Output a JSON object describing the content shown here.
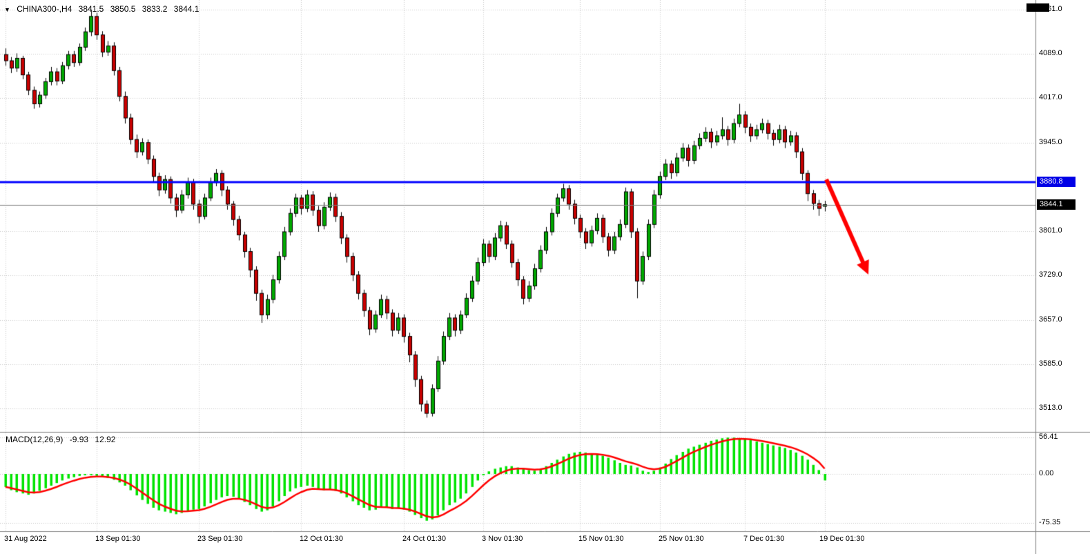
{
  "header": {
    "symbol_period": "CHINA300-,H4",
    "open": "3841.5",
    "high": "3850.5",
    "low": "3833.2",
    "close": "3844.1"
  },
  "macd_header": {
    "title": "MACD(12,26,9)",
    "main": "-9.93",
    "signal": "12.92"
  },
  "levels": {
    "resistance": {
      "text": "3880.8",
      "value": 3880.8,
      "color": "#0000e6"
    },
    "current": {
      "text": "3844.1",
      "value": 3844.1,
      "color": "#000000"
    }
  },
  "colors": {
    "bull": "#00a800",
    "bear": "#c80000",
    "candle_border": "#000000",
    "macd_hist": "#00e400",
    "macd_signal": "#ff0000",
    "level_line": "#0000ff",
    "current_line": "#808080",
    "grid": "#c8c8c8",
    "separator": "#808080",
    "arrow": "#ff0000"
  },
  "chart_data": {
    "type": "candlestick",
    "symbol": "CHINA300-",
    "timeframe": "H4",
    "price_axis_labels": [
      "4161.0",
      "4089.0",
      "4017.0",
      "3945.0",
      "3801.0",
      "3729.0",
      "3657.0",
      "3585.0",
      "3513.0"
    ],
    "time_axis": [
      {
        "label": "31 Aug 2022",
        "i": 0
      },
      {
        "label": "13 Sep 01:30",
        "i": 16
      },
      {
        "label": "23 Sep 01:30",
        "i": 34
      },
      {
        "label": "12 Oct 01:30",
        "i": 52
      },
      {
        "label": "24 Oct 01:30",
        "i": 70
      },
      {
        "label": "3 Nov 01:30",
        "i": 84
      },
      {
        "label": "15 Nov 01:30",
        "i": 101
      },
      {
        "label": "25 Nov 01:30",
        "i": 115
      },
      {
        "label": "7 Dec 01:30",
        "i": 130
      },
      {
        "label": "19 Dec 01:30",
        "i": 144
      }
    ],
    "candles": [
      [
        4088,
        4098,
        4070,
        4078
      ],
      [
        4078,
        4084,
        4058,
        4066
      ],
      [
        4066,
        4090,
        4060,
        4082
      ],
      [
        4082,
        4086,
        4048,
        4055
      ],
      [
        4055,
        4060,
        4022,
        4030
      ],
      [
        4030,
        4036,
        4000,
        4008
      ],
      [
        4008,
        4028,
        4002,
        4022
      ],
      [
        4022,
        4050,
        4016,
        4044
      ],
      [
        4044,
        4068,
        4038,
        4060
      ],
      [
        4060,
        4066,
        4038,
        4045
      ],
      [
        4045,
        4076,
        4040,
        4070
      ],
      [
        4070,
        4094,
        4064,
        4088
      ],
      [
        4088,
        4094,
        4068,
        4075
      ],
      [
        4075,
        4106,
        4070,
        4100
      ],
      [
        4100,
        4132,
        4094,
        4125
      ],
      [
        4125,
        4160,
        4118,
        4150
      ],
      [
        4150,
        4156,
        4112,
        4120
      ],
      [
        4120,
        4126,
        4084,
        4092
      ],
      [
        4092,
        4110,
        4086,
        4102
      ],
      [
        4102,
        4108,
        4054,
        4062
      ],
      [
        4062,
        4068,
        4012,
        4020
      ],
      [
        4020,
        4028,
        3976,
        3985
      ],
      [
        3985,
        3992,
        3942,
        3950
      ],
      [
        3950,
        3958,
        3920,
        3930
      ],
      [
        3930,
        3952,
        3924,
        3945
      ],
      [
        3945,
        3950,
        3910,
        3918
      ],
      [
        3918,
        3924,
        3880,
        3890
      ],
      [
        3890,
        3896,
        3858,
        3868
      ],
      [
        3868,
        3892,
        3862,
        3885
      ],
      [
        3885,
        3890,
        3846,
        3855
      ],
      [
        3855,
        3862,
        3824,
        3835
      ],
      [
        3835,
        3868,
        3830,
        3860
      ],
      [
        3860,
        3888,
        3854,
        3880
      ],
      [
        3880,
        3886,
        3836,
        3845
      ],
      [
        3845,
        3852,
        3814,
        3825
      ],
      [
        3825,
        3862,
        3820,
        3855
      ],
      [
        3855,
        3888,
        3850,
        3880
      ],
      [
        3880,
        3902,
        3874,
        3895
      ],
      [
        3895,
        3900,
        3858,
        3868
      ],
      [
        3868,
        3874,
        3836,
        3845
      ],
      [
        3845,
        3850,
        3810,
        3820
      ],
      [
        3820,
        3826,
        3786,
        3795
      ],
      [
        3795,
        3800,
        3758,
        3768
      ],
      [
        3768,
        3774,
        3726,
        3738
      ],
      [
        3738,
        3744,
        3688,
        3700
      ],
      [
        3700,
        3706,
        3652,
        3665
      ],
      [
        3665,
        3698,
        3658,
        3690
      ],
      [
        3690,
        3730,
        3684,
        3722
      ],
      [
        3722,
        3768,
        3716,
        3760
      ],
      [
        3760,
        3808,
        3754,
        3800
      ],
      [
        3800,
        3838,
        3794,
        3830
      ],
      [
        3830,
        3862,
        3824,
        3855
      ],
      [
        3855,
        3860,
        3828,
        3838
      ],
      [
        3838,
        3868,
        3832,
        3860
      ],
      [
        3860,
        3866,
        3826,
        3835
      ],
      [
        3835,
        3842,
        3800,
        3810
      ],
      [
        3810,
        3848,
        3804,
        3840
      ],
      [
        3840,
        3864,
        3834,
        3856
      ],
      [
        3856,
        3862,
        3816,
        3825
      ],
      [
        3825,
        3832,
        3780,
        3790
      ],
      [
        3790,
        3796,
        3750,
        3760
      ],
      [
        3760,
        3766,
        3720,
        3730
      ],
      [
        3730,
        3736,
        3690,
        3700
      ],
      [
        3700,
        3706,
        3662,
        3672
      ],
      [
        3672,
        3678,
        3632,
        3642
      ],
      [
        3642,
        3672,
        3636,
        3665
      ],
      [
        3665,
        3698,
        3660,
        3690
      ],
      [
        3690,
        3696,
        3658,
        3668
      ],
      [
        3668,
        3674,
        3630,
        3640
      ],
      [
        3640,
        3668,
        3634,
        3660
      ],
      [
        3660,
        3666,
        3620,
        3630
      ],
      [
        3630,
        3636,
        3588,
        3600
      ],
      [
        3600,
        3606,
        3548,
        3560
      ],
      [
        3560,
        3566,
        3508,
        3520
      ],
      [
        3520,
        3526,
        3498,
        3505
      ],
      [
        3505,
        3552,
        3500,
        3545
      ],
      [
        3545,
        3598,
        3540,
        3590
      ],
      [
        3590,
        3638,
        3584,
        3630
      ],
      [
        3630,
        3668,
        3624,
        3660
      ],
      [
        3660,
        3666,
        3630,
        3640
      ],
      [
        3640,
        3672,
        3634,
        3665
      ],
      [
        3665,
        3700,
        3660,
        3692
      ],
      [
        3692,
        3728,
        3686,
        3720
      ],
      [
        3720,
        3758,
        3714,
        3750
      ],
      [
        3750,
        3788,
        3744,
        3780
      ],
      [
        3780,
        3786,
        3750,
        3760
      ],
      [
        3760,
        3798,
        3754,
        3790
      ],
      [
        3790,
        3818,
        3784,
        3810
      ],
      [
        3810,
        3816,
        3772,
        3780
      ],
      [
        3780,
        3786,
        3742,
        3750
      ],
      [
        3750,
        3756,
        3712,
        3722
      ],
      [
        3722,
        3728,
        3682,
        3692
      ],
      [
        3692,
        3720,
        3686,
        3712
      ],
      [
        3712,
        3748,
        3706,
        3740
      ],
      [
        3740,
        3778,
        3734,
        3770
      ],
      [
        3770,
        3808,
        3764,
        3800
      ],
      [
        3800,
        3838,
        3794,
        3830
      ],
      [
        3830,
        3862,
        3824,
        3855
      ],
      [
        3855,
        3878,
        3849,
        3870
      ],
      [
        3870,
        3876,
        3836,
        3845
      ],
      [
        3845,
        3852,
        3812,
        3822
      ],
      [
        3822,
        3828,
        3790,
        3800
      ],
      [
        3800,
        3806,
        3772,
        3782
      ],
      [
        3782,
        3810,
        3776,
        3802
      ],
      [
        3802,
        3830,
        3796,
        3822
      ],
      [
        3822,
        3828,
        3782,
        3792
      ],
      [
        3792,
        3798,
        3760,
        3770
      ],
      [
        3770,
        3800,
        3764,
        3792
      ],
      [
        3792,
        3820,
        3786,
        3812
      ],
      [
        3812,
        3872,
        3806,
        3865
      ],
      [
        3865,
        3870,
        3790,
        3800
      ],
      [
        3800,
        3806,
        3692,
        3720
      ],
      [
        3720,
        3768,
        3714,
        3760
      ],
      [
        3760,
        3820,
        3754,
        3812
      ],
      [
        3812,
        3868,
        3806,
        3860
      ],
      [
        3860,
        3898,
        3854,
        3890
      ],
      [
        3890,
        3918,
        3884,
        3910
      ],
      [
        3910,
        3916,
        3886,
        3896
      ],
      [
        3896,
        3928,
        3890,
        3920
      ],
      [
        3920,
        3944,
        3914,
        3936
      ],
      [
        3936,
        3942,
        3906,
        3916
      ],
      [
        3916,
        3948,
        3910,
        3940
      ],
      [
        3940,
        3960,
        3934,
        3952
      ],
      [
        3952,
        3970,
        3946,
        3962
      ],
      [
        3962,
        3968,
        3936,
        3946
      ],
      [
        3946,
        3964,
        3940,
        3956
      ],
      [
        3956,
        3986,
        3950,
        3966
      ],
      [
        3966,
        3972,
        3940,
        3950
      ],
      [
        3950,
        3984,
        3944,
        3976
      ],
      [
        3976,
        4008,
        3970,
        3990
      ],
      [
        3990,
        3996,
        3960,
        3970
      ],
      [
        3970,
        3976,
        3946,
        3956
      ],
      [
        3956,
        3974,
        3950,
        3966
      ],
      [
        3966,
        3984,
        3960,
        3976
      ],
      [
        3976,
        3982,
        3950,
        3960
      ],
      [
        3960,
        3966,
        3940,
        3950
      ],
      [
        3950,
        3974,
        3944,
        3966
      ],
      [
        3966,
        3972,
        3936,
        3946
      ],
      [
        3946,
        3964,
        3940,
        3956
      ],
      [
        3956,
        3962,
        3920,
        3930
      ],
      [
        3930,
        3936,
        3884,
        3895
      ],
      [
        3895,
        3900,
        3850,
        3862
      ],
      [
        3862,
        3868,
        3836,
        3846
      ],
      [
        3846,
        3852,
        3826,
        3838
      ],
      [
        3841.5,
        3850.5,
        3833.2,
        3844.1
      ]
    ],
    "macd": {
      "type": "bar+line",
      "axis_labels": [
        "56.41",
        "0.00",
        "-75.35"
      ],
      "histogram": [
        -20,
        -25,
        -28,
        -30,
        -32,
        -30,
        -26,
        -22,
        -18,
        -14,
        -10,
        -7,
        -5,
        -3,
        -2,
        -2,
        -3,
        -4,
        -6,
        -9,
        -13,
        -18,
        -25,
        -33,
        -40,
        -46,
        -52,
        -56,
        -58,
        -60,
        -62,
        -60,
        -57,
        -55,
        -54,
        -50,
        -45,
        -40,
        -36,
        -34,
        -35,
        -38,
        -43,
        -48,
        -54,
        -58,
        -56,
        -50,
        -42,
        -34,
        -27,
        -22,
        -20,
        -18,
        -20,
        -24,
        -25,
        -24,
        -26,
        -30,
        -36,
        -42,
        -48,
        -52,
        -56,
        -55,
        -52,
        -52,
        -54,
        -53,
        -55,
        -58,
        -63,
        -68,
        -72,
        -70,
        -64,
        -56,
        -48,
        -44,
        -38,
        -30,
        -20,
        -10,
        -2,
        4,
        8,
        10,
        12,
        12,
        10,
        8,
        6,
        5,
        8,
        12,
        17,
        22,
        27,
        31,
        33,
        34,
        33,
        31,
        30,
        28,
        25,
        21,
        17,
        14,
        13,
        10,
        5,
        3,
        5,
        10,
        16,
        23,
        29,
        34,
        39,
        42,
        45,
        48,
        51,
        53,
        55,
        56,
        56,
        55,
        54,
        52,
        50,
        48,
        46,
        44,
        42,
        40,
        37,
        33,
        28,
        22,
        14,
        6,
        -9.93
      ]
    },
    "annotations": [
      {
        "type": "arrow",
        "color": "#ff0000",
        "from": [
          1197,
          260
        ],
        "to": [
          1258,
          398
        ]
      }
    ]
  }
}
